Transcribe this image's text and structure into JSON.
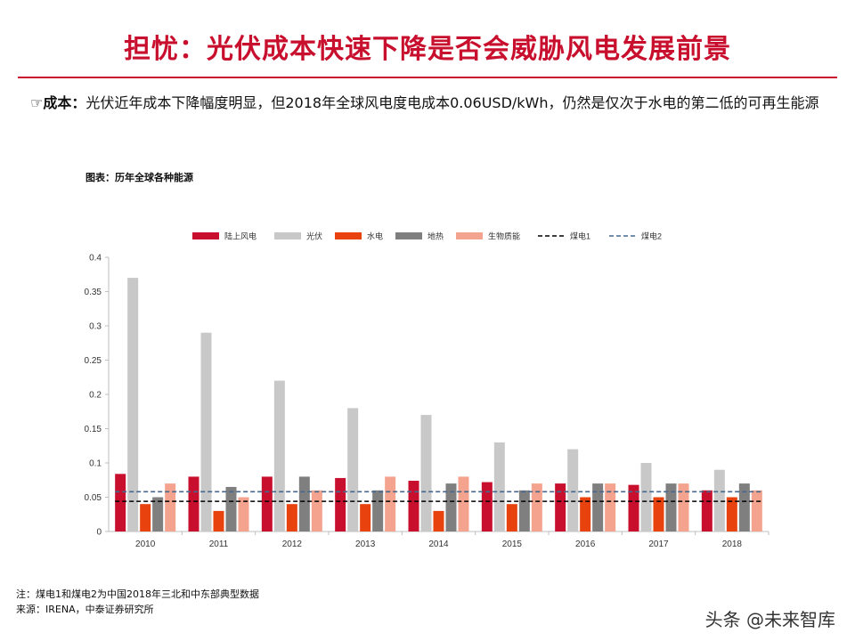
{
  "slide": {
    "title": "担忧：光伏成本快速下降是否会威胁风电发展前景",
    "bullet_symbol": "☞",
    "bullet_label": "成本：",
    "bullet_text": "光伏近年成本下降幅度明显，但2018年全球风电度电成本0.06USD/kWh，仍然是仅次于水电的第二低的可再生能源",
    "chart_caption": "图表：历年全球各种能源",
    "note1": "注：煤电1和煤电2为中国2018年三北和中东部典型数据",
    "note2": "来源：IRENA，中泰证券研究所",
    "watermark": "头条 @未来智库"
  },
  "chart_data": {
    "type": "bar",
    "title": "",
    "xlabel": "",
    "ylabel": "",
    "categories": [
      "2010",
      "2011",
      "2012",
      "2013",
      "2014",
      "2015",
      "2016",
      "2017",
      "2018"
    ],
    "ylim": [
      0,
      0.4
    ],
    "yticks": [
      "0",
      "0.05",
      "0.1",
      "0.15",
      "0.2",
      "0.25",
      "0.3",
      "0.35",
      "0.4"
    ],
    "grid": false,
    "legend_position": "top",
    "series": [
      {
        "name": "陆上风电",
        "type": "bar",
        "color": "#c8102e",
        "values": [
          0.084,
          0.08,
          0.08,
          0.078,
          0.074,
          0.072,
          0.07,
          0.068,
          0.06
        ]
      },
      {
        "name": "光伏",
        "type": "bar",
        "color": "#c8c8c8",
        "values": [
          0.37,
          0.29,
          0.22,
          0.18,
          0.17,
          0.13,
          0.12,
          0.1,
          0.09
        ]
      },
      {
        "name": "水电",
        "type": "bar",
        "color": "#e8420f",
        "values": [
          0.04,
          0.03,
          0.04,
          0.04,
          0.03,
          0.04,
          0.05,
          0.05,
          0.05
        ]
      },
      {
        "name": "地热",
        "type": "bar",
        "color": "#7f7f7f",
        "values": [
          0.05,
          0.065,
          0.08,
          0.06,
          0.07,
          0.06,
          0.07,
          0.07,
          0.07
        ]
      },
      {
        "name": "生物质能",
        "type": "bar",
        "color": "#f4a38e",
        "values": [
          0.07,
          0.05,
          0.06,
          0.08,
          0.08,
          0.07,
          0.07,
          0.07,
          0.06
        ]
      },
      {
        "name": "煤电1",
        "type": "line",
        "style": "dashed",
        "color": "#000000",
        "value": 0.044
      },
      {
        "name": "煤电2",
        "type": "line",
        "style": "dashed",
        "color": "#44688e",
        "value": 0.058
      }
    ]
  }
}
